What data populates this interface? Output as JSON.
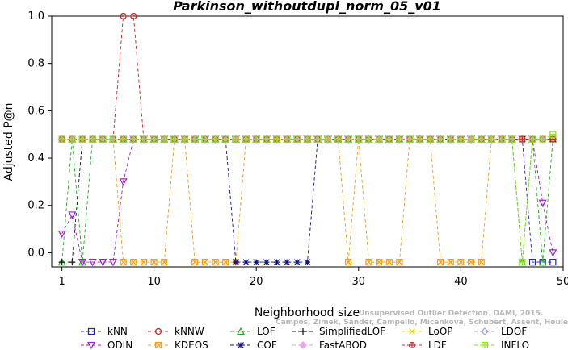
{
  "chart_data": {
    "type": "line",
    "title": "Parkinson_withoutdupl_norm_05_v01",
    "xlabel": "Neighborhood size",
    "ylabel": "Adjusted P@n",
    "xlim": [
      0,
      50
    ],
    "ylim": [
      -0.06,
      1.0
    ],
    "x_ticks": [
      1,
      10,
      20,
      30,
      40,
      50
    ],
    "y_ticks": [
      0.0,
      0.2,
      0.4,
      0.6,
      0.8,
      1.0
    ],
    "y_tick_labels": [
      "0.0",
      "0.2",
      "0.4",
      "0.6",
      "0.8",
      "1.0"
    ],
    "grid": false,
    "legend_position": "bottom",
    "x": [
      1,
      2,
      3,
      4,
      5,
      6,
      7,
      8,
      9,
      10,
      11,
      12,
      13,
      14,
      15,
      16,
      17,
      18,
      19,
      20,
      21,
      22,
      23,
      24,
      25,
      26,
      27,
      28,
      29,
      30,
      31,
      32,
      33,
      34,
      35,
      36,
      37,
      38,
      39,
      40,
      41,
      42,
      43,
      44,
      45,
      46,
      47,
      48,
      49
    ],
    "series": [
      {
        "name": "kNN",
        "color": "#1f1fd1",
        "marker": "square",
        "dash": "4,3",
        "values": [
          0.48,
          0.48,
          0.48,
          0.48,
          0.48,
          0.48,
          0.48,
          0.48,
          0.48,
          0.48,
          0.48,
          0.48,
          0.48,
          0.48,
          0.48,
          0.48,
          0.48,
          0.48,
          0.48,
          0.48,
          0.48,
          0.48,
          0.48,
          0.48,
          0.48,
          0.48,
          0.48,
          0.48,
          0.48,
          0.48,
          0.48,
          0.48,
          0.48,
          0.48,
          0.48,
          0.48,
          0.48,
          0.48,
          0.48,
          0.48,
          0.48,
          0.48,
          0.48,
          0.48,
          0.48,
          0.48,
          -0.04,
          -0.04,
          -0.04
        ]
      },
      {
        "name": "kNNW",
        "color": "#d22020",
        "marker": "circle",
        "dash": "4,3",
        "values": [
          0.48,
          0.48,
          0.48,
          0.48,
          0.48,
          0.48,
          1.0,
          1.0,
          0.48,
          0.48,
          0.48,
          0.48,
          0.48,
          0.48,
          0.48,
          0.48,
          0.48,
          0.48,
          0.48,
          0.48,
          0.48,
          0.48,
          0.48,
          0.48,
          0.48,
          0.48,
          0.48,
          0.48,
          0.48,
          0.48,
          0.48,
          0.48,
          0.48,
          0.48,
          0.48,
          0.48,
          0.48,
          0.48,
          0.48,
          0.48,
          0.48,
          0.48,
          0.48,
          0.48,
          0.48,
          0.48,
          0.48,
          0.48,
          0.48
        ]
      },
      {
        "name": "LOF",
        "color": "#1fae1f",
        "marker": "triangle-up",
        "dash": "4,3",
        "values": [
          -0.04,
          0.48,
          -0.04,
          0.48,
          0.48,
          0.48,
          0.48,
          0.48,
          0.48,
          0.48,
          0.48,
          0.48,
          0.48,
          0.48,
          0.48,
          0.48,
          0.48,
          0.48,
          0.48,
          0.48,
          0.48,
          0.48,
          0.48,
          0.48,
          0.48,
          0.48,
          0.48,
          0.48,
          0.48,
          0.48,
          0.48,
          0.48,
          0.48,
          0.48,
          0.48,
          0.48,
          0.48,
          0.48,
          0.48,
          0.48,
          0.48,
          0.48,
          0.48,
          0.48,
          0.48,
          -0.04,
          0.48,
          -0.04,
          0.48
        ]
      },
      {
        "name": "SimplifiedLOF",
        "color": "#111111",
        "marker": "plus",
        "dash": "4,3",
        "values": [
          -0.04,
          -0.04,
          0.48,
          0.48,
          0.48,
          0.48,
          0.48,
          0.48,
          0.48,
          0.48,
          0.48,
          0.48,
          0.48,
          0.48,
          0.48,
          0.48,
          0.48,
          0.48,
          0.48,
          0.48,
          0.48,
          0.48,
          0.48,
          0.48,
          0.48,
          0.48,
          0.48,
          0.48,
          0.48,
          0.48,
          0.48,
          0.48,
          0.48,
          0.48,
          0.48,
          0.48,
          0.48,
          0.48,
          0.48,
          0.48,
          0.48,
          0.48,
          0.48,
          0.48,
          0.48,
          0.48,
          0.48,
          0.48,
          0.48
        ]
      },
      {
        "name": "LoOP",
        "color": "#e8d800",
        "marker": "x",
        "dash": "4,3",
        "values": [
          0.48,
          0.48,
          0.48,
          0.48,
          0.48,
          0.48,
          0.48,
          0.48,
          0.48,
          0.48,
          0.48,
          0.48,
          0.48,
          0.48,
          0.48,
          0.48,
          0.48,
          0.48,
          0.48,
          0.48,
          0.48,
          0.48,
          0.48,
          0.48,
          0.48,
          0.48,
          0.48,
          0.48,
          0.48,
          0.48,
          0.48,
          0.48,
          0.48,
          0.48,
          0.48,
          0.48,
          0.48,
          0.48,
          0.48,
          0.48,
          0.48,
          0.48,
          0.48,
          0.48,
          0.48,
          0.48,
          0.48,
          0.48,
          0.48
        ]
      },
      {
        "name": "LDOF",
        "color": "#9c9ce0",
        "marker": "diamond",
        "dash": "4,3",
        "values": [
          0.48,
          0.48,
          0.48,
          0.48,
          0.48,
          0.48,
          0.48,
          0.48,
          0.48,
          0.48,
          0.48,
          0.48,
          0.48,
          0.48,
          0.48,
          0.48,
          0.48,
          0.48,
          0.48,
          0.48,
          0.48,
          0.48,
          0.48,
          0.48,
          0.48,
          0.48,
          0.48,
          0.48,
          0.48,
          0.48,
          0.48,
          0.48,
          0.48,
          0.48,
          0.48,
          0.48,
          0.48,
          0.48,
          0.48,
          0.48,
          0.48,
          0.48,
          0.48,
          0.48,
          0.48,
          0.48,
          0.48,
          0.48,
          0.48
        ]
      },
      {
        "name": "ODIN",
        "color": "#a020d8",
        "marker": "triangle-down",
        "dash": "4,3",
        "values": [
          0.08,
          0.16,
          -0.04,
          -0.04,
          -0.04,
          -0.04,
          0.3,
          0.48,
          0.48,
          0.48,
          0.48,
          0.48,
          0.48,
          0.48,
          0.48,
          0.48,
          0.48,
          0.48,
          0.48,
          0.48,
          0.48,
          0.48,
          0.48,
          0.48,
          0.48,
          0.48,
          0.48,
          0.48,
          0.48,
          0.48,
          0.48,
          0.48,
          0.48,
          0.48,
          0.48,
          0.48,
          0.48,
          0.48,
          0.48,
          0.48,
          0.48,
          0.48,
          0.48,
          0.48,
          0.48,
          0.48,
          0.48,
          0.21,
          0.0
        ]
      },
      {
        "name": "KDEOS",
        "color": "#f0a020",
        "marker": "square-x",
        "dash": "4,3",
        "values": [
          0.48,
          0.48,
          0.48,
          0.48,
          0.48,
          0.48,
          -0.04,
          -0.04,
          -0.04,
          -0.04,
          -0.04,
          0.48,
          0.48,
          -0.04,
          -0.04,
          -0.04,
          -0.04,
          -0.04,
          0.48,
          0.48,
          0.48,
          0.48,
          0.48,
          0.48,
          0.48,
          0.48,
          0.48,
          0.48,
          -0.04,
          0.48,
          -0.04,
          -0.04,
          -0.04,
          -0.04,
          0.48,
          0.48,
          0.48,
          -0.04,
          -0.04,
          -0.04,
          -0.04,
          -0.04,
          0.48,
          0.48,
          0.48,
          0.48,
          0.48,
          0.48,
          0.48
        ]
      },
      {
        "name": "COF",
        "color": "#101080",
        "marker": "asterisk",
        "dash": "4,3",
        "values": [
          0.48,
          0.48,
          0.48,
          0.48,
          0.48,
          0.48,
          0.48,
          0.48,
          0.48,
          0.48,
          0.48,
          0.48,
          0.48,
          0.48,
          0.48,
          0.48,
          0.48,
          -0.04,
          -0.04,
          -0.04,
          -0.04,
          -0.04,
          -0.04,
          -0.04,
          -0.04,
          0.48,
          0.48,
          0.48,
          0.48,
          0.48,
          0.48,
          0.48,
          0.48,
          0.48,
          0.48,
          0.48,
          0.48,
          0.48,
          0.48,
          0.48,
          0.48,
          0.48,
          0.48,
          0.48,
          0.48,
          0.48,
          0.48,
          0.48,
          0.48
        ]
      },
      {
        "name": "FastABOD",
        "color": "#f0a0e8",
        "marker": "diamond-filled",
        "dash": "4,3",
        "values": [
          0.48,
          0.48,
          0.48,
          0.48,
          0.48,
          0.48,
          0.48,
          0.48,
          0.48,
          0.48,
          0.48,
          0.48,
          0.48,
          0.48,
          0.48,
          0.48,
          0.48,
          0.48,
          0.48,
          0.48,
          0.48,
          0.48,
          0.48,
          0.48,
          0.48,
          0.48,
          0.48,
          0.48,
          0.48,
          0.48,
          0.48,
          0.48,
          0.48,
          0.48,
          0.48,
          0.48,
          0.48,
          0.48,
          0.48,
          0.48,
          0.48,
          0.48,
          0.48,
          0.48,
          0.48,
          0.48,
          0.48,
          0.48,
          0.48
        ]
      },
      {
        "name": "LDF",
        "color": "#c03030",
        "marker": "circle-plus",
        "dash": "4,3",
        "values": [
          0.48,
          0.48,
          0.48,
          0.48,
          0.48,
          0.48,
          0.48,
          0.48,
          0.48,
          0.48,
          0.48,
          0.48,
          0.48,
          0.48,
          0.48,
          0.48,
          0.48,
          0.48,
          0.48,
          0.48,
          0.48,
          0.48,
          0.48,
          0.48,
          0.48,
          0.48,
          0.48,
          0.48,
          0.48,
          0.48,
          0.48,
          0.48,
          0.48,
          0.48,
          0.48,
          0.48,
          0.48,
          0.48,
          0.48,
          0.48,
          0.48,
          0.48,
          0.48,
          0.48,
          0.48,
          0.48,
          0.48,
          0.48,
          0.48
        ]
      },
      {
        "name": "INFLO",
        "color": "#90e020",
        "marker": "square-plus",
        "dash": "4,3",
        "values": [
          0.48,
          0.48,
          0.48,
          0.48,
          0.48,
          0.48,
          0.48,
          0.48,
          0.48,
          0.48,
          0.48,
          0.48,
          0.48,
          0.48,
          0.48,
          0.48,
          0.48,
          0.48,
          0.48,
          0.48,
          0.48,
          0.48,
          0.48,
          0.48,
          0.48,
          0.48,
          0.48,
          0.48,
          0.48,
          0.48,
          0.48,
          0.48,
          0.48,
          0.48,
          0.48,
          0.48,
          0.48,
          0.48,
          0.48,
          0.48,
          0.48,
          0.48,
          0.48,
          0.48,
          0.48,
          -0.04,
          0.48,
          0.48,
          0.5
        ]
      }
    ]
  },
  "watermark": {
    "line1": "Unsupervised Outlier Detection. DAMI, 2015.",
    "line2": "Campos, Zimek, Sander, Campello, Micenková, Schubert, Assent, Houle"
  }
}
